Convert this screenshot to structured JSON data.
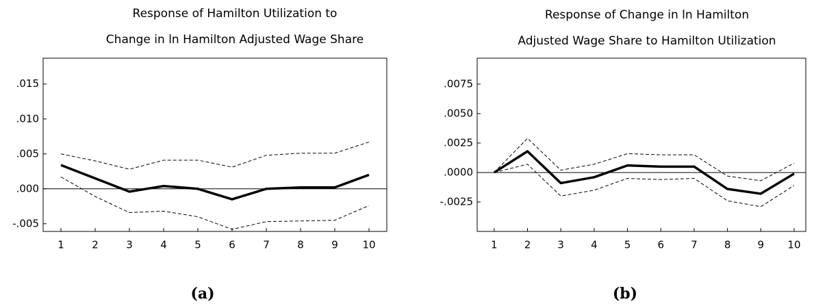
{
  "chart_data": [
    {
      "type": "line",
      "title": [
        "Response of Hamilton Utilization to",
        "Change in ln Hamilton Adjusted Wage Share"
      ],
      "caption": "(a)",
      "x": [
        1,
        2,
        3,
        4,
        5,
        6,
        7,
        8,
        9,
        10
      ],
      "xlim": [
        0.48,
        10.52
      ],
      "xticks": [
        1,
        2,
        3,
        4,
        5,
        6,
        7,
        8,
        9,
        10
      ],
      "ylim": [
        -0.0061,
        0.0187
      ],
      "yticks": [
        {
          "value": -0.005,
          "label": "-.005"
        },
        {
          "value": 0,
          "label": ".000"
        },
        {
          "value": 0.005,
          "label": ".005"
        },
        {
          "value": 0.01,
          "label": ".010"
        },
        {
          "value": 0.015,
          "label": ".015"
        }
      ],
      "zero_line": true,
      "series": [
        {
          "color": "#000000",
          "style": "solid",
          "values": [
            0.0034,
            0.0015,
            -0.0004,
            0.0004,
            0.0,
            -0.0015,
            0.0,
            0.0002,
            0.0002,
            0.002
          ]
        },
        {
          "color": "#000000",
          "style": "dashed",
          "values": [
            0.005,
            0.004,
            0.0028,
            0.0041,
            0.0041,
            0.0031,
            0.0048,
            0.0051,
            0.0051,
            0.0067
          ]
        },
        {
          "color": "#000000",
          "style": "dashed",
          "values": [
            0.0017,
            -0.0011,
            -0.0034,
            -0.0032,
            -0.004,
            -0.0058,
            -0.0047,
            -0.0046,
            -0.0045,
            -0.0024
          ]
        }
      ]
    },
    {
      "type": "line",
      "title": [
        "Response of Change in ln Hamilton",
        "Adjusted Wage Share to Hamilton Utilization"
      ],
      "caption": "(b)",
      "x": [
        1,
        2,
        3,
        4,
        5,
        6,
        7,
        8,
        9,
        10
      ],
      "xlim": [
        0.49,
        10.35
      ],
      "xticks": [
        1,
        2,
        3,
        4,
        5,
        6,
        7,
        8,
        9,
        10
      ],
      "ylim": [
        -0.005,
        0.0097
      ],
      "yticks": [
        {
          "value": -0.0025,
          "label": "-.0025"
        },
        {
          "value": 0,
          "label": ".0000"
        },
        {
          "value": 0.0025,
          "label": ".0025"
        },
        {
          "value": 0.005,
          "label": ".0050"
        },
        {
          "value": 0.0075,
          "label": ".0075"
        }
      ],
      "zero_line": true,
      "series": [
        {
          "color": "#000000",
          "style": "solid",
          "values": [
            0.0,
            0.0018,
            -0.0009,
            -0.0004,
            0.0006,
            0.0005,
            0.0005,
            -0.0014,
            -0.0018,
            -0.0001
          ]
        },
        {
          "color": "#000000",
          "style": "dashed",
          "values": [
            0.0,
            0.0029,
            0.0002,
            0.0007,
            0.0016,
            0.0015,
            0.0015,
            -0.0003,
            -0.0007,
            0.0008
          ]
        },
        {
          "color": "#000000",
          "style": "dashed",
          "values": [
            0.0,
            0.0007,
            -0.002,
            -0.0015,
            -0.0005,
            -0.0006,
            -0.0005,
            -0.0024,
            -0.0029,
            -0.0011
          ]
        }
      ]
    }
  ]
}
